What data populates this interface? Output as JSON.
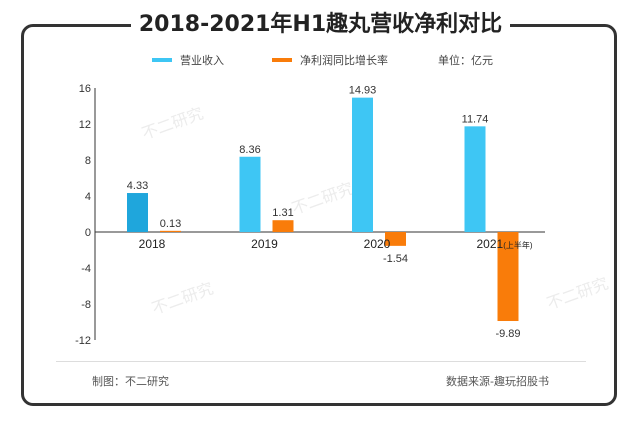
{
  "chart_data": {
    "type": "bar",
    "title": "2018-2021年H1趣丸营收净利对比",
    "categories": [
      "2018",
      "2019",
      "2020",
      "2021"
    ],
    "category_suffix": {
      "2021": "(上半年)"
    },
    "series": [
      {
        "name": "营业收入",
        "color": "#3ec6f4",
        "values": [
          4.33,
          8.36,
          14.93,
          11.74
        ]
      },
      {
        "name": "净利润同比增长率",
        "color": "#f97c0a",
        "values": [
          0.13,
          1.31,
          -1.54,
          -9.89
        ]
      }
    ],
    "data_labels": [
      [
        "4.33",
        "8.36",
        "14.93",
        "11.74"
      ],
      [
        "0.13",
        "1.31",
        "-1.54",
        "-9.89"
      ]
    ],
    "unit": "单位：亿元",
    "ylim": [
      -12,
      16
    ],
    "yticks": [
      "16",
      "12",
      "8",
      "4",
      "0",
      "-4",
      "-8",
      "-12"
    ],
    "grid": false,
    "legend": "top"
  },
  "footer": {
    "left": "制图：不二研究",
    "right": "数据来源-趣玩招股书"
  },
  "watermark": "不二研究"
}
